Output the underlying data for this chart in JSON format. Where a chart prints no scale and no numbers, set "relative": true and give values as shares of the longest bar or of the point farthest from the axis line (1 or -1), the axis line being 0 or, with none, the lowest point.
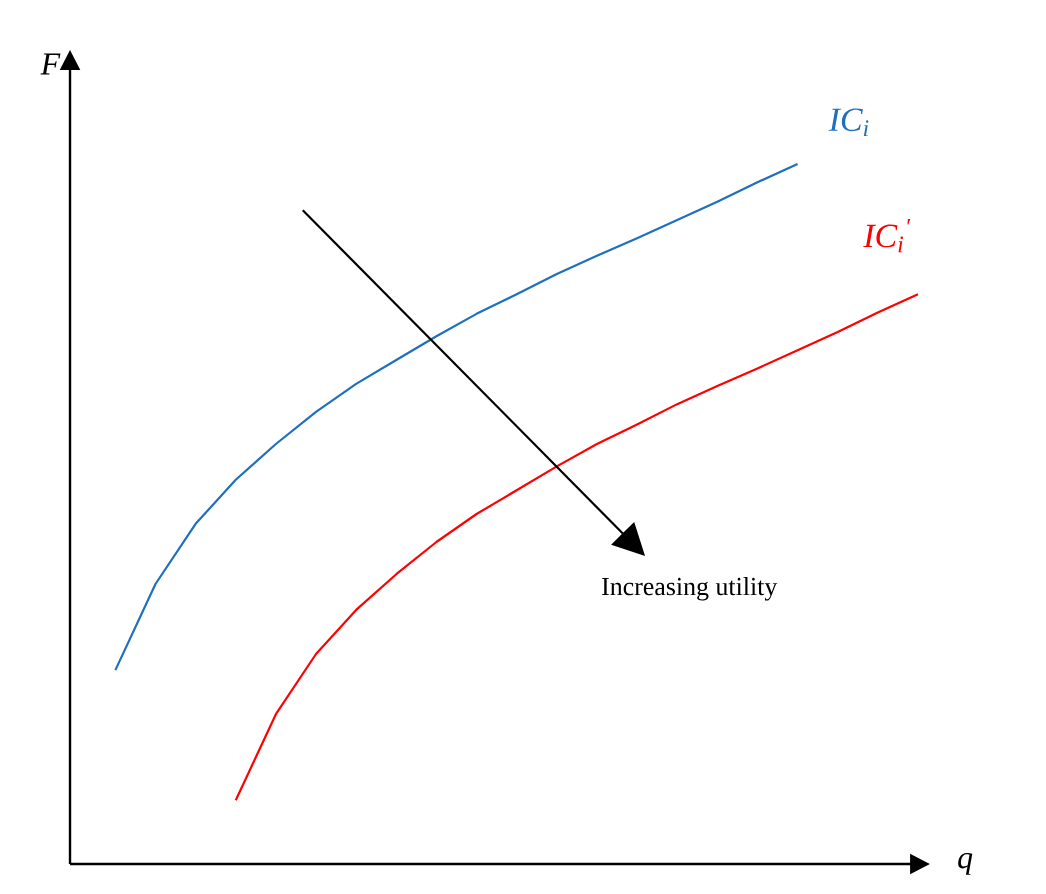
{
  "chart_data": {
    "type": "line",
    "relative": true,
    "xlabel": "q",
    "ylabel": "F",
    "legend": false,
    "categories": [
      null,
      null,
      null,
      null,
      null,
      null,
      null,
      null,
      null,
      null,
      null,
      null,
      null,
      null,
      null,
      null,
      null,
      null,
      null,
      null,
      null
    ],
    "series": [
      {
        "name": "IC$_{i}$",
        "color": "#1f6fbf",
        "values": [
          0.277,
          0.4,
          0.486,
          0.549,
          0.6,
          0.646,
          0.686,
          0.72,
          0.754,
          0.786,
          0.814,
          0.843,
          0.869,
          0.894,
          0.92,
          0.946,
          0.974,
          1.0,
          null,
          null,
          null
        ]
      },
      {
        "name": "IC$_{i}$$^{′}$",
        "color": "#ff0000",
        "values": [
          null,
          null,
          null,
          0.091,
          0.214,
          0.3,
          0.363,
          0.414,
          0.46,
          0.5,
          0.534,
          0.568,
          0.6,
          0.628,
          0.657,
          0.683,
          0.708,
          0.734,
          0.76,
          0.788,
          0.814
        ]
      }
    ],
    "annotations": [
      "Increasing utility"
    ]
  }
}
